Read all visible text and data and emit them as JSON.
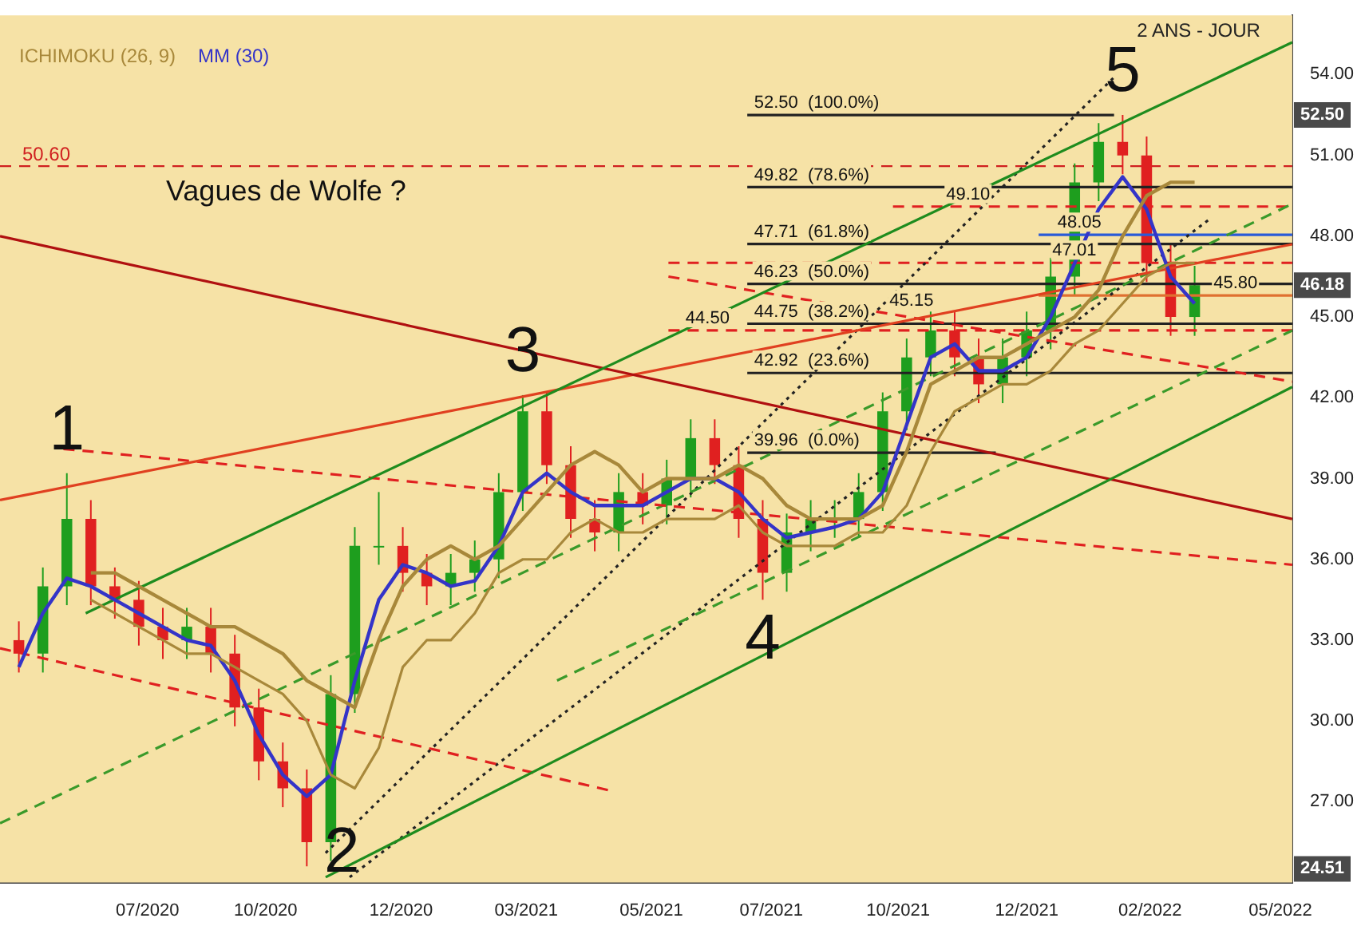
{
  "chart_data": {
    "type": "candlestick",
    "subtitle": "2 ANS - JOUR",
    "legend": "top left",
    "x": [
      "2020-04-22",
      "2020-05-06",
      "2020-05-20",
      "2020-06-03",
      "2020-06-17",
      "2020-07-01",
      "2020-07-15",
      "2020-07-29",
      "2020-08-12",
      "2020-08-26",
      "2020-09-09",
      "2020-09-23",
      "2020-10-07",
      "2020-10-21",
      "2020-11-04",
      "2020-11-18",
      "2020-12-02",
      "2020-12-16",
      "2020-12-30",
      "2021-01-13",
      "2021-01-27",
      "2021-02-10",
      "2021-02-24",
      "2021-03-10",
      "2021-03-24",
      "2021-04-07",
      "2021-04-21",
      "2021-05-05",
      "2021-05-19",
      "2021-06-02",
      "2021-06-16",
      "2021-06-30",
      "2021-07-14",
      "2021-07-28",
      "2021-08-11",
      "2021-08-25",
      "2021-09-08",
      "2021-09-22",
      "2021-10-06",
      "2021-10-20",
      "2021-11-03",
      "2021-11-17",
      "2021-12-01",
      "2021-12-15",
      "2021-12-29",
      "2022-01-12",
      "2022-01-26",
      "2022-02-09",
      "2022-02-23",
      "2022-03-09"
    ],
    "xlim": [
      "2020-04-11",
      "2022-05-05"
    ],
    "xticks": [
      {
        "value": "2020-07-06",
        "label": "07/2020"
      },
      {
        "value": "2020-09-13",
        "label": "10/2020"
      },
      {
        "value": "2020-12-01",
        "label": "12/2020"
      },
      {
        "value": "2021-02-12",
        "label": "03/2021"
      },
      {
        "value": "2021-04-26",
        "label": "05/2021"
      },
      {
        "value": "2021-07-05",
        "label": "07/2021"
      },
      {
        "value": "2021-09-17",
        "label": "10/2021"
      },
      {
        "value": "2021-12-01",
        "label": "12/2021"
      },
      {
        "value": "2022-02-11",
        "label": "02/2022"
      },
      {
        "value": "2022-04-28",
        "label": "05/2022"
      }
    ],
    "ylim": [
      24,
      56.2
    ],
    "yticks": [
      {
        "value": 27,
        "label": "27.00"
      },
      {
        "value": 30,
        "label": "30.00"
      },
      {
        "value": 33,
        "label": "33.00"
      },
      {
        "value": 36,
        "label": "36.00"
      },
      {
        "value": 39,
        "label": "39.00"
      },
      {
        "value": 42,
        "label": "42.00"
      },
      {
        "value": 45,
        "label": "45.00"
      },
      {
        "value": 48,
        "label": "48.00"
      },
      {
        "value": 51,
        "label": "51.00"
      },
      {
        "value": 54,
        "label": "54.00"
      }
    ],
    "series": [
      {
        "type": "line",
        "color": "#a8883a",
        "values": [
          null,
          null,
          null,
          34.5,
          34,
          33.5,
          33,
          32.5,
          32.5,
          32,
          31.5,
          31,
          30,
          28,
          27.5,
          29,
          32,
          33,
          33,
          34,
          35.5,
          36,
          36,
          37,
          37.5,
          37,
          37,
          37.5,
          37.5,
          37.5,
          38,
          37,
          36.5,
          36.5,
          36.5,
          37,
          37,
          38,
          40,
          41.5,
          42,
          42.5,
          42.5,
          43,
          44,
          44.5,
          45.5,
          46.5,
          47,
          47
        ]
      },
      {
        "type": "line",
        "name": "ICHIMOKU (26, 9)",
        "color": "#a8883a",
        "values": [
          null,
          null,
          null,
          35.5,
          35.5,
          35,
          34.5,
          34,
          33.5,
          33.5,
          33,
          32.5,
          31.5,
          31,
          30.5,
          33,
          35,
          36,
          36.5,
          36,
          36.5,
          37.5,
          38.5,
          39.5,
          40,
          39.5,
          38.5,
          39,
          39,
          39,
          39.5,
          39,
          38,
          37.5,
          37.5,
          37.5,
          38,
          40,
          42.5,
          43,
          43.5,
          43.5,
          44,
          44.5,
          45,
          46,
          48,
          49.5,
          50,
          50
        ]
      },
      {
        "ohlc": [
          [
            33,
            33.7,
            31.8,
            32.5
          ],
          [
            32.5,
            35.7,
            31.8,
            35
          ],
          [
            35,
            39.2,
            34.3,
            37.5
          ],
          [
            37.5,
            38.2,
            34.3,
            35
          ],
          [
            35,
            35.7,
            33.8,
            34.5
          ],
          [
            34.5,
            35.2,
            32.8,
            33.5
          ],
          [
            33.5,
            34.2,
            32.3,
            33
          ],
          [
            33,
            34.2,
            32.3,
            33.5
          ],
          [
            33.5,
            34.2,
            31.8,
            32.5
          ],
          [
            32.5,
            33.2,
            29.8,
            30.5
          ],
          [
            30.5,
            31.2,
            27.8,
            28.5
          ],
          [
            28.5,
            29.2,
            26.8,
            27.5
          ],
          [
            27.5,
            28.2,
            24.6,
            25.5
          ],
          [
            25.5,
            31.7,
            24.8,
            31
          ],
          [
            31,
            37.2,
            30.3,
            36.5
          ],
          [
            36.5,
            38.5,
            35.8,
            36.5
          ],
          [
            36.5,
            37.2,
            34.8,
            35.5
          ],
          [
            35.5,
            36.2,
            34.3,
            35
          ],
          [
            35,
            36.2,
            34.3,
            35.5
          ],
          [
            35.5,
            36.7,
            34.8,
            36
          ],
          [
            36,
            39.2,
            35.3,
            38.5
          ],
          [
            38.5,
            42.1,
            37.8,
            41.5
          ],
          [
            41.5,
            42.2,
            38.8,
            39.5
          ],
          [
            39.5,
            40.2,
            36.8,
            37.5
          ],
          [
            37.5,
            38.2,
            36.3,
            37
          ],
          [
            37,
            39.2,
            36.3,
            38.5
          ],
          [
            38.5,
            39.2,
            37.3,
            38
          ],
          [
            38,
            39.7,
            37.3,
            39
          ],
          [
            39,
            41.2,
            38.3,
            40.5
          ],
          [
            40.5,
            41.2,
            38.8,
            39.5
          ],
          [
            39.5,
            40.2,
            36.8,
            37.5
          ],
          [
            37.5,
            38.2,
            34.5,
            35.5
          ],
          [
            35.5,
            37.7,
            34.8,
            37
          ],
          [
            37,
            38.2,
            36.3,
            37.5
          ],
          [
            37.5,
            38.2,
            36.8,
            37.5
          ],
          [
            37.5,
            39.2,
            36.8,
            38.5
          ],
          [
            38.5,
            42.2,
            37.8,
            41.5
          ],
          [
            41.5,
            44.2,
            40.8,
            43.5
          ],
          [
            43.5,
            45.2,
            42.8,
            44.5
          ],
          [
            44.5,
            45.2,
            42.8,
            43.5
          ],
          [
            43.5,
            44.2,
            41.8,
            42.5
          ],
          [
            42.5,
            44.2,
            41.8,
            43.5
          ],
          [
            43.5,
            45.2,
            42.8,
            44.5
          ],
          [
            44.5,
            47.2,
            43.8,
            46.5
          ],
          [
            46.5,
            50.7,
            45.8,
            50
          ],
          [
            50,
            52.2,
            49.3,
            51.5
          ],
          [
            51.5,
            52.5,
            50.3,
            51
          ],
          [
            51,
            51.7,
            46.3,
            47
          ],
          [
            47,
            47.7,
            44.3,
            45
          ],
          [
            45,
            46.9,
            44.3,
            46.18
          ]
        ],
        "colors": [
          "#e02020",
          "#1e9e1e",
          "#1e9e1e",
          "#e02020",
          "#e02020",
          "#e02020",
          "#e02020",
          "#1e9e1e",
          "#e02020",
          "#e02020",
          "#e02020",
          "#e02020",
          "#e02020",
          "#1e9e1e",
          "#1e9e1e",
          "#1e9e1e",
          "#e02020",
          "#e02020",
          "#1e9e1e",
          "#1e9e1e",
          "#1e9e1e",
          "#1e9e1e",
          "#e02020",
          "#e02020",
          "#e02020",
          "#1e9e1e",
          "#e02020",
          "#1e9e1e",
          "#1e9e1e",
          "#e02020",
          "#e02020",
          "#e02020",
          "#1e9e1e",
          "#1e9e1e",
          "#1e9e1e",
          "#1e9e1e",
          "#1e9e1e",
          "#1e9e1e",
          "#1e9e1e",
          "#e02020",
          "#e02020",
          "#1e9e1e",
          "#1e9e1e",
          "#1e9e1e",
          "#1e9e1e",
          "#1e9e1e",
          "#e02020",
          "#e02020",
          "#e02020",
          "#1e9e1e"
        ]
      },
      {
        "type": "line",
        "name": "MM (30)",
        "color": "#3434c8",
        "values": [
          32,
          34,
          35.3,
          35,
          34.5,
          34,
          33.5,
          33,
          32.8,
          31.5,
          29.5,
          28,
          27.2,
          28,
          31.5,
          34.5,
          35.8,
          35.5,
          35,
          35.2,
          36.5,
          38.5,
          39.2,
          38.5,
          38,
          38,
          38,
          38.5,
          39,
          39,
          38.5,
          37.5,
          36.8,
          37,
          37.2,
          37.5,
          38.5,
          41,
          43.5,
          44,
          43,
          43,
          43.5,
          45,
          47,
          49,
          50.2,
          49,
          46.5,
          45.5
        ]
      },
      {
        "type": "line",
        "color": "#1e8c1e",
        "x": [
          "2020-05-31",
          "2022-05-05"
        ],
        "values": [
          34.0,
          55.2
        ]
      },
      {
        "type": "line",
        "color": "#1e8c1e",
        "x": [
          "2020-10-18",
          "2022-05-05"
        ],
        "values": [
          24.2,
          42.4
        ]
      },
      {
        "type": "line",
        "color": "#b01010",
        "x": [
          "2020-04-11",
          "2022-05-05"
        ],
        "values": [
          48.0,
          37.5
        ]
      },
      {
        "type": "line",
        "color": "#e04020",
        "x": [
          "2020-04-11",
          "2022-05-05"
        ],
        "values": [
          38.2,
          47.7
        ]
      },
      {
        "type": "line",
        "color": "#e02020",
        "line_style": "dashed",
        "x": [
          "2020-05-18",
          "2022-05-05"
        ],
        "values": [
          40.1,
          35.8
        ]
      },
      {
        "type": "line",
        "color": "#e02020",
        "line_style": "dashed",
        "x": [
          "2020-04-11",
          "2021-04-03"
        ],
        "values": [
          32.7,
          27.4
        ]
      },
      {
        "type": "line",
        "color": "#e02020",
        "line_style": "dashed",
        "x": [
          "2021-05-06",
          "2022-05-05"
        ],
        "values": [
          46.5,
          42.6
        ]
      },
      {
        "type": "line",
        "color": "#3a9a2a",
        "line_style": "dashed",
        "x": [
          "2020-04-11",
          "2022-05-05"
        ],
        "values": [
          26.2,
          49.2
        ]
      },
      {
        "type": "line",
        "color": "#3a9a2a",
        "line_style": "dashed",
        "x": [
          "2021-03-02",
          "2022-05-05"
        ],
        "values": [
          31.5,
          44.5
        ]
      },
      {
        "type": "line",
        "color": "#222222",
        "line_style": "dotted",
        "x": [
          "2020-10-18",
          "2022-01-21"
        ],
        "values": [
          25.1,
          53.9
        ]
      },
      {
        "type": "line",
        "color": "#222222",
        "line_style": "dotted",
        "x": [
          "2020-11-01",
          "2022-03-17"
        ],
        "values": [
          24.2,
          48.6
        ]
      },
      {
        "type": "line",
        "color": "#222222",
        "x": [
          "2021-06-21",
          "2022-01-21"
        ],
        "values": [
          52.5,
          52.5
        ]
      },
      {
        "type": "line",
        "color": "#222222",
        "x": [
          "2021-06-21",
          "2022-05-05"
        ],
        "values": [
          49.82,
          49.82
        ]
      },
      {
        "type": "line",
        "color": "#222222",
        "x": [
          "2021-06-21",
          "2022-05-05"
        ],
        "values": [
          47.71,
          47.71
        ]
      },
      {
        "type": "line",
        "color": "#222222",
        "x": [
          "2021-06-21",
          "2022-05-05"
        ],
        "values": [
          46.23,
          46.23
        ]
      },
      {
        "type": "line",
        "color": "#222222",
        "x": [
          "2021-06-21",
          "2022-05-05"
        ],
        "values": [
          44.75,
          44.75
        ]
      },
      {
        "type": "line",
        "color": "#222222",
        "x": [
          "2021-06-21",
          "2022-05-05"
        ],
        "values": [
          42.92,
          42.92
        ]
      },
      {
        "type": "line",
        "color": "#222222",
        "x": [
          "2021-06-21",
          "2021-11-13"
        ],
        "values": [
          39.96,
          39.96
        ]
      },
      {
        "type": "line",
        "color": "#e02020",
        "line_style": "dashed",
        "x": [
          "2021-09-14",
          "2022-05-05"
        ],
        "values": [
          49.1,
          49.1
        ]
      },
      {
        "type": "line",
        "color": "#e02020",
        "line_style": "dashed",
        "x": [
          "2021-05-06",
          "2022-05-05"
        ],
        "values": [
          47.01,
          47.01
        ]
      },
      {
        "type": "line",
        "color": "#e02020",
        "line_style": "dashed",
        "x": [
          "2021-05-06",
          "2022-05-05"
        ],
        "values": [
          44.5,
          44.5
        ]
      },
      {
        "type": "line",
        "color": "#2a5ad8",
        "x": [
          "2021-12-08",
          "2022-05-05"
        ],
        "values": [
          48.05,
          48.05
        ]
      },
      {
        "type": "line",
        "color": "#e07030",
        "x": [
          "2021-12-08",
          "2022-05-05"
        ],
        "values": [
          45.8,
          45.8
        ]
      }
    ],
    "ref_lines": [
      {
        "axis": "y",
        "value": 50.6,
        "label": "50.60",
        "color": "#d02020",
        "line_style": "dashed"
      }
    ],
    "annotations": [
      "Vagues de Wolfe ?",
      {
        "text": "1",
        "x": "2020-05-20",
        "y": 39.2
      },
      {
        "text": "2",
        "x": "2020-10-07",
        "y": 24.6
      },
      {
        "text": "3",
        "x": "2021-02-10",
        "y": 42.1
      },
      {
        "text": "4",
        "x": "2021-06-30",
        "y": 34.5
      },
      {
        "text": "5",
        "x": "2022-01-26",
        "y": 52.5
      },
      {
        "text": "52.50  (100.0%)",
        "x": "2021-06-25",
        "y": 52.5
      },
      {
        "text": "49.82  (78.6%)",
        "x": "2021-06-25",
        "y": 49.82
      },
      {
        "text": "47.71  (61.8%)",
        "x": "2021-06-25",
        "y": 47.71
      },
      {
        "text": "46.23  (50.0%)",
        "x": "2021-06-25",
        "y": 46.23
      },
      {
        "text": "44.75  (38.2%)",
        "x": "2021-06-25",
        "y": 44.75
      },
      {
        "text": "42.92  (23.6%)",
        "x": "2021-06-25",
        "y": 42.92
      },
      {
        "text": "39.96  (0.0%)",
        "x": "2021-06-25",
        "y": 39.96
      },
      {
        "text": "49.10",
        "x": "2021-10-15",
        "y": 49.1
      },
      {
        "text": "47.01",
        "x": "2021-12-16",
        "y": 47.01
      },
      {
        "text": "48.05",
        "x": "2021-12-19",
        "y": 48.05
      },
      {
        "text": "45.80",
        "x": "2022-03-20",
        "y": 45.8
      },
      {
        "text": "45.15",
        "x": "2021-09-12",
        "y": 45.15
      },
      {
        "text": "44.50",
        "x": "2021-05-16",
        "y": 44.5
      },
      {
        "text": "52.50",
        "y": 52.5
      },
      {
        "text": "46.18",
        "y": 46.18
      },
      {
        "text": "24.51",
        "y": 24.51
      }
    ]
  }
}
